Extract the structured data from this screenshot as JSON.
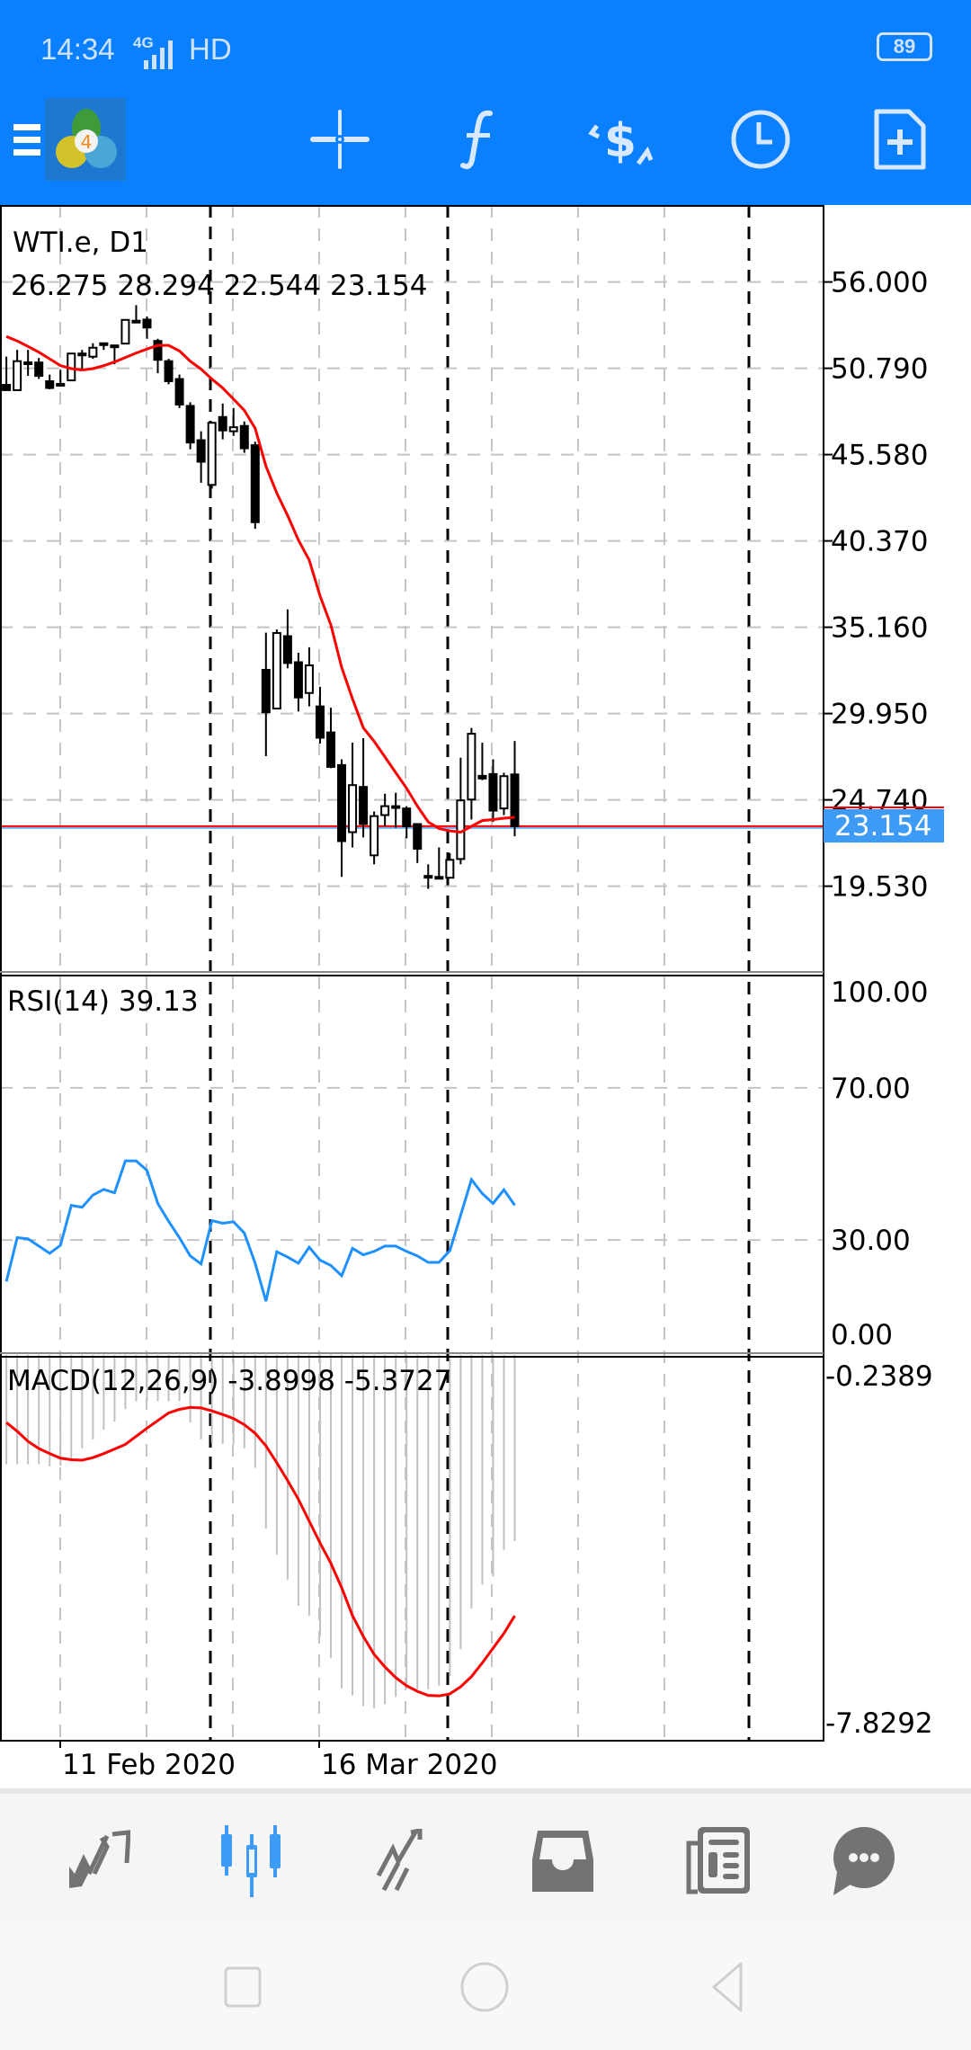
{
  "status_bar": {
    "time": "14:34",
    "network": "4G",
    "hd": "HD",
    "battery": "89"
  },
  "toolbar": {
    "icons": [
      "menu-icon",
      "mt4-logo",
      "crosshair-icon",
      "indicators-icon",
      "trade-icon",
      "timeframe-icon",
      "new-order-icon"
    ],
    "accent": "#0a80fe"
  },
  "chart": {
    "symbol_label": "WTI.e, D1",
    "ohlc_label": "26.275 28.294 22.544 23.154",
    "current_price": "23.154",
    "price_axis": [
      "56.000",
      "50.790",
      "45.580",
      "40.370",
      "35.160",
      "29.950",
      "24.740",
      "19.530"
    ],
    "price_axis_values": [
      56.0,
      50.79,
      45.58,
      40.37,
      35.16,
      29.95,
      24.74,
      19.53
    ],
    "candles": [
      [
        49.79,
        51.49,
        49.47,
        49.47
      ],
      [
        49.47,
        51.9,
        49.47,
        51.22
      ],
      [
        51.07,
        51.9,
        50.33,
        51.15
      ],
      [
        51.14,
        51.41,
        50.15,
        50.33
      ],
      [
        50.01,
        50.41,
        49.52,
        49.6
      ],
      [
        49.74,
        50.69,
        49.69,
        49.85
      ],
      [
        50.06,
        51.68,
        50.06,
        51.68
      ],
      [
        51.57,
        51.9,
        50.77,
        51.68
      ],
      [
        51.49,
        52.3,
        51.36,
        52.03
      ],
      [
        52.22,
        52.3,
        51.9,
        52.3
      ],
      [
        52.11,
        52.17,
        51.03,
        52.17
      ],
      [
        52.28,
        53.71,
        52.28,
        53.71
      ],
      [
        53.66,
        54.6,
        53.52,
        53.6
      ],
      [
        53.73,
        53.92,
        52.57,
        53.25
      ],
      [
        52.44,
        52.57,
        50.49,
        51.3
      ],
      [
        51.22,
        51.36,
        49.82,
        50.01
      ],
      [
        50.14,
        50.41,
        48.39,
        48.6
      ],
      [
        48.52,
        48.74,
        45.9,
        46.31
      ],
      [
        46.45,
        46.99,
        43.88,
        45.15
      ],
      [
        43.75,
        47.5,
        43.53,
        47.5
      ],
      [
        47.85,
        48.66,
        46.5,
        47.04
      ],
      [
        46.99,
        48.39,
        46.71,
        47.23
      ],
      [
        47.31,
        47.58,
        45.69,
        45.96
      ],
      [
        46.15,
        46.36,
        41.1,
        41.5
      ],
      [
        32.59,
        34.83,
        27.38,
        30.03
      ],
      [
        30.25,
        35.02,
        30.25,
        34.81
      ],
      [
        34.62,
        36.24,
        32.68,
        33.0
      ],
      [
        33.05,
        33.62,
        30.08,
        30.92
      ],
      [
        31.19,
        33.95,
        30.38,
        32.86
      ],
      [
        30.38,
        31.57,
        28.14,
        28.49
      ],
      [
        28.81,
        30.3,
        26.65,
        26.73
      ],
      [
        26.84,
        27.19,
        20.09,
        22.25
      ],
      [
        22.79,
        28.19,
        21.87,
        25.63
      ],
      [
        25.52,
        28.46,
        22.47,
        23.28
      ],
      [
        21.39,
        24.04,
        20.85,
        23.76
      ],
      [
        23.82,
        25.11,
        23.14,
        24.36
      ],
      [
        24.31,
        25.17,
        23.06,
        24.36
      ],
      [
        24.22,
        24.36,
        22.42,
        23.14
      ],
      [
        23.28,
        23.33,
        20.93,
        21.79
      ],
      [
        20.15,
        20.85,
        19.37,
        20.09
      ],
      [
        20.09,
        21.87,
        20.04,
        20.04
      ],
      [
        20.04,
        21.53,
        20.04,
        21.12
      ],
      [
        21.17,
        27.28,
        20.85,
        24.71
      ],
      [
        24.76,
        29.08,
        23.55,
        28.73
      ],
      [
        26.19,
        28.19,
        25.93,
        26.03
      ],
      [
        26.3,
        27.19,
        23.41,
        24.09
      ],
      [
        24.22,
        26.38,
        23.82,
        26.17
      ],
      [
        26.275,
        28.294,
        22.544,
        23.154
      ]
    ],
    "ma_values": [
      52.71,
      52.44,
      52.11,
      51.76,
      51.36,
      50.95,
      50.77,
      50.69,
      50.77,
      50.95,
      51.17,
      51.44,
      51.71,
      51.95,
      52.17,
      52.17,
      51.84,
      51.22,
      50.74,
      50.14,
      49.6,
      48.93,
      48.25,
      47.17,
      44.88,
      43.26,
      41.91,
      40.42,
      39.21,
      37.05,
      35.3,
      32.73,
      30.84,
      29.09,
      28.27,
      27.33,
      26.38,
      25.44,
      24.36,
      23.41,
      23.01,
      22.87,
      22.79,
      23.14,
      23.49,
      23.55,
      23.63,
      23.69
    ],
    "ma_color": "#ff0000",
    "bull_color": "#ffffff",
    "bear_color": "#000000",
    "price_tag_color": "#3d9bf6",
    "date_labels": [
      "11 Feb 2020",
      "16 Mar 2020"
    ]
  },
  "rsi": {
    "label": "RSI(14) 39.13",
    "axis": [
      "100.00",
      "70.00",
      "30.00",
      "0.00"
    ],
    "values": [
      19.1,
      30.6,
      30.3,
      28.4,
      26.5,
      28.6,
      39.1,
      38.6,
      41.8,
      43.3,
      42.4,
      50.8,
      50.8,
      48.3,
      39.6,
      34.9,
      30.6,
      25.8,
      23.7,
      35.1,
      34.4,
      34.8,
      31.8,
      23.9,
      13.9,
      26.9,
      25.5,
      23.9,
      28.1,
      24.7,
      23.3,
      20.6,
      27.8,
      26.1,
      27.0,
      28.4,
      28.4,
      27.0,
      25.8,
      24.1,
      24.1,
      27.2,
      36.5,
      45.9,
      42.2,
      39.6,
      43.2,
      39.13
    ],
    "color": "#1e90ff"
  },
  "macd": {
    "label": "MACD(12,26,9) -3.8998 -5.3727",
    "axis": [
      "-0.2389",
      "-7.8292"
    ],
    "histogram": [
      -2.39,
      -2.39,
      -2.39,
      -2.39,
      -2.43,
      -2.42,
      -2.3,
      -2.08,
      -1.9,
      -1.71,
      -1.55,
      -1.3,
      -1.15,
      -1.15,
      -1.15,
      -1.15,
      -1.15,
      -1.57,
      -1.9,
      -1.97,
      -1.99,
      -1.99,
      -2.08,
      -2.46,
      -3.66,
      -4.17,
      -4.66,
      -5.18,
      -5.37,
      -5.79,
      -6.2,
      -6.8,
      -6.94,
      -7.15,
      -7.19,
      -7.11,
      -6.97,
      -6.81,
      -6.82,
      -6.82,
      -6.75,
      -6.56,
      -6.03,
      -5.23,
      -4.76,
      -4.6,
      -4.07,
      -3.8998
    ],
    "signal": [
      -1.57,
      -1.74,
      -1.94,
      -2.08,
      -2.18,
      -2.27,
      -2.3,
      -2.31,
      -2.26,
      -2.18,
      -2.09,
      -2.0,
      -1.84,
      -1.68,
      -1.53,
      -1.38,
      -1.31,
      -1.27,
      -1.28,
      -1.34,
      -1.41,
      -1.49,
      -1.61,
      -1.78,
      -2.03,
      -2.36,
      -2.71,
      -3.08,
      -3.51,
      -3.94,
      -4.34,
      -4.82,
      -5.37,
      -5.78,
      -6.13,
      -6.38,
      -6.59,
      -6.75,
      -6.86,
      -6.94,
      -6.95,
      -6.91,
      -6.77,
      -6.57,
      -6.3,
      -6.01,
      -5.72,
      -5.3727
    ],
    "histogram_color": "#c0c0c0",
    "signal_color": "#ff0000"
  },
  "bottom_nav": {
    "items": [
      "quotes-icon",
      "chart-icon",
      "trade-icon",
      "history-icon",
      "news-icon",
      "chat-icon"
    ],
    "active": 1,
    "active_color": "#3d9bf6",
    "inactive_color": "#737373"
  }
}
